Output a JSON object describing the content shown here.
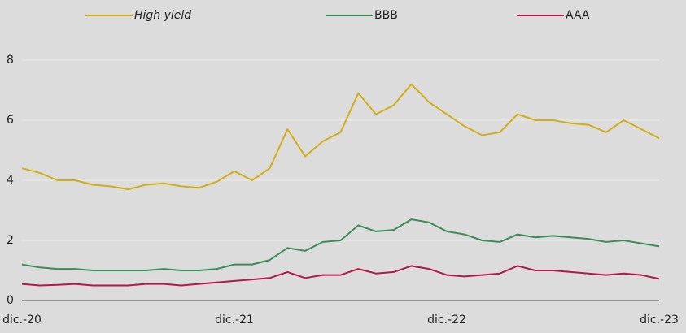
{
  "chart_data": {
    "type": "line",
    "categories": [
      "dic.-20",
      null,
      null,
      null,
      null,
      null,
      null,
      null,
      null,
      null,
      null,
      null,
      "dic.-21",
      null,
      null,
      null,
      null,
      null,
      null,
      null,
      null,
      null,
      null,
      null,
      "dic.-22",
      null,
      null,
      null,
      null,
      null,
      null,
      null,
      null,
      null,
      null,
      null,
      "dic.-23"
    ],
    "series": [
      {
        "name": "High yield",
        "color": "#cfae17",
        "values": [
          4.4,
          4.25,
          4.0,
          4.0,
          3.85,
          3.8,
          3.7,
          3.85,
          3.9,
          3.8,
          3.75,
          3.95,
          4.3,
          4.0,
          4.4,
          5.7,
          4.8,
          5.3,
          5.6,
          6.9,
          6.2,
          6.5,
          7.2,
          6.6,
          6.2,
          5.8,
          5.5,
          5.6,
          6.2,
          6.0,
          6.0,
          5.9,
          5.85,
          5.6,
          6.0,
          5.7,
          5.4
        ]
      },
      {
        "name": "BBB",
        "color": "#3d8a5b",
        "values": [
          1.2,
          1.1,
          1.05,
          1.05,
          1.0,
          1.0,
          1.0,
          1.0,
          1.05,
          1.0,
          1.0,
          1.05,
          1.2,
          1.2,
          1.35,
          1.75,
          1.65,
          1.95,
          2.0,
          2.5,
          2.3,
          2.35,
          2.7,
          2.6,
          2.3,
          2.2,
          2.0,
          1.95,
          2.2,
          2.1,
          2.15,
          2.1,
          2.05,
          1.95,
          2.0,
          1.9,
          1.8
        ]
      },
      {
        "name": "AAA",
        "color": "#b3194a",
        "values": [
          0.55,
          0.5,
          0.52,
          0.55,
          0.5,
          0.5,
          0.5,
          0.55,
          0.55,
          0.5,
          0.55,
          0.6,
          0.65,
          0.7,
          0.75,
          0.95,
          0.75,
          0.85,
          0.85,
          1.05,
          0.9,
          0.95,
          1.15,
          1.05,
          0.85,
          0.8,
          0.85,
          0.9,
          1.15,
          1.0,
          1.0,
          0.95,
          0.9,
          0.85,
          0.9,
          0.85,
          0.72
        ]
      }
    ],
    "ylim": [
      0,
      8
    ],
    "yticks": [
      0,
      2,
      4,
      6,
      8
    ],
    "grid": true
  }
}
